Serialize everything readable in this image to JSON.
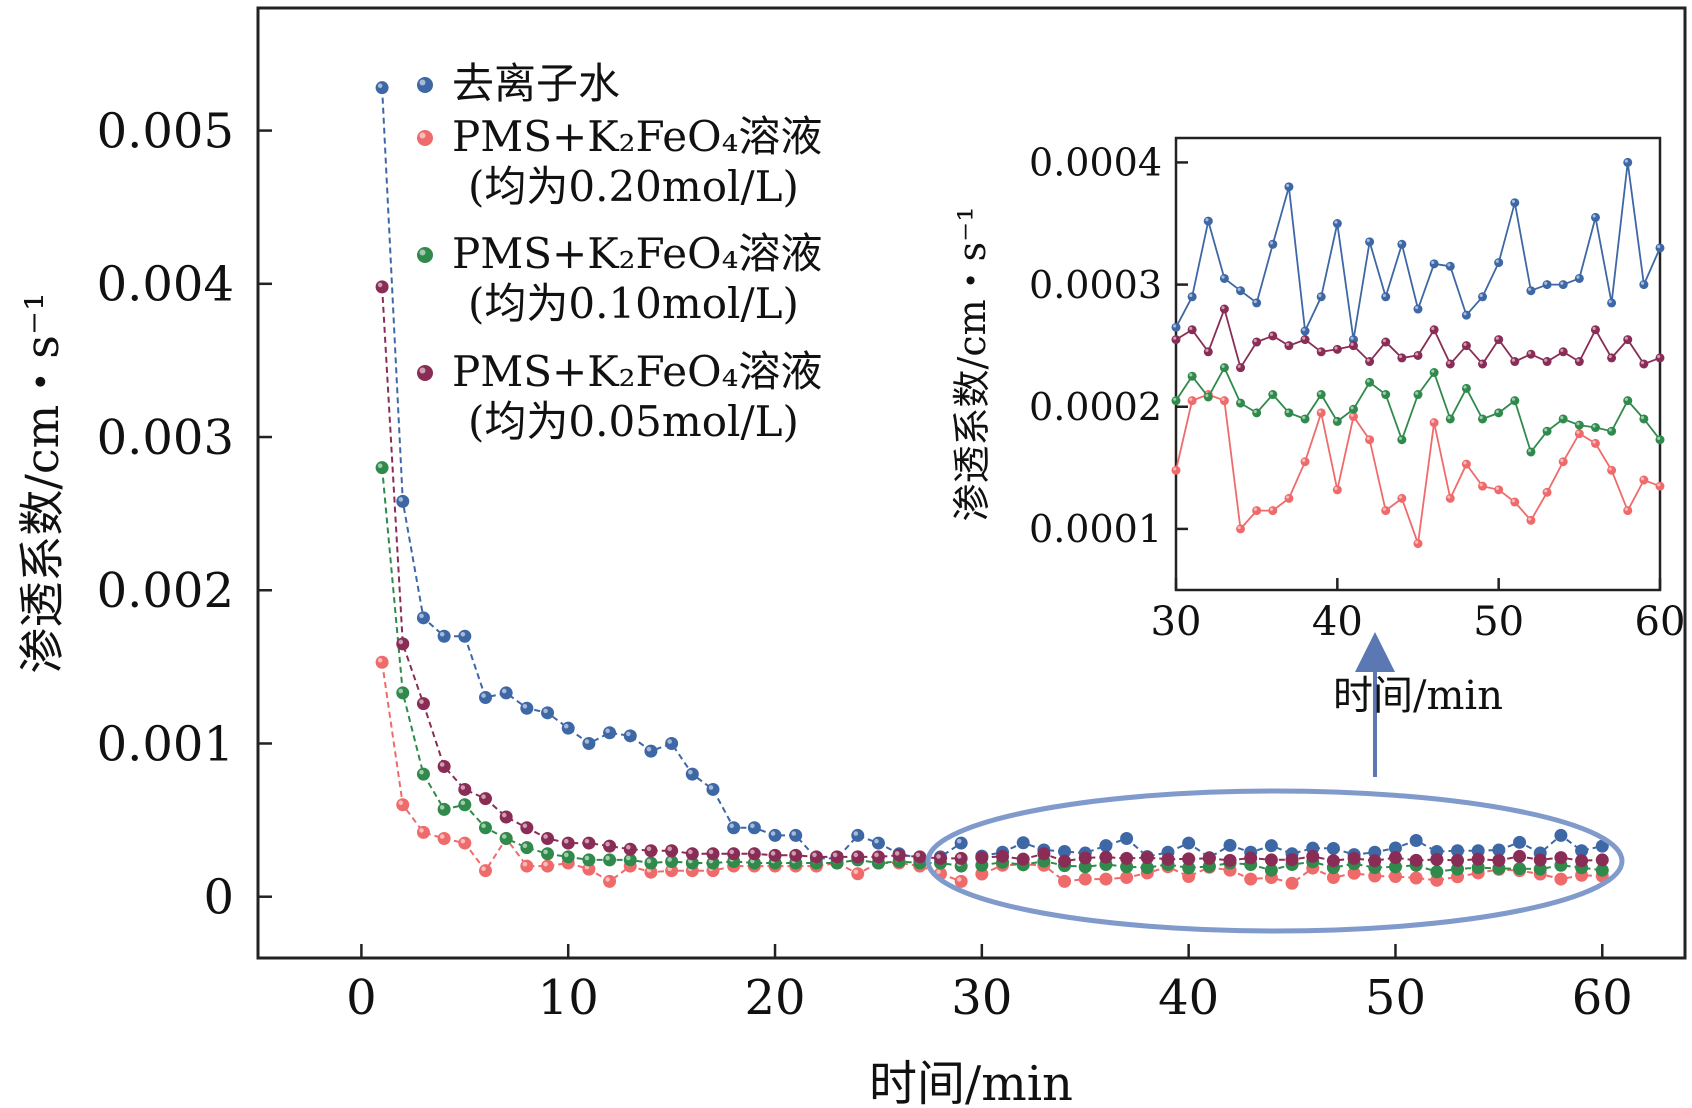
{
  "colors": {
    "blue": "#3e67a6",
    "red": "#ef6b6b",
    "green": "#2f8a4c",
    "purple": "#8a2d56",
    "ellipse": "#7f9acb",
    "arrow": "#5b78b3"
  },
  "chart_data": [
    {
      "id": "main",
      "type": "scatter-line",
      "xlabel": "时间/min",
      "ylabel": "渗透系数/cm・s⁻¹",
      "xlim": [
        -5,
        64
      ],
      "ylim": [
        -0.0004,
        0.0058
      ],
      "xticks": [
        0,
        10,
        20,
        30,
        40,
        50,
        60
      ],
      "yticks": [
        0,
        0.001,
        0.002,
        0.003,
        0.004,
        0.005
      ],
      "ytick_labels": [
        "0",
        "0.001",
        "0.002",
        "0.003",
        "0.004",
        "0.005"
      ],
      "legend": [
        {
          "series": 0,
          "text": [
            "去离子水"
          ]
        },
        {
          "series": 1,
          "text": [
            "PMS+K₂FeO₄溶液",
            "(均为0.20mol/L)"
          ]
        },
        {
          "series": 2,
          "text": [
            "PMS+K₂FeO₄溶液",
            "(均为0.10mol/L)"
          ]
        },
        {
          "series": 3,
          "text": [
            "PMS+K₂FeO₄溶液",
            "(均为0.05mol/L)"
          ]
        }
      ],
      "annotation": "ellipse highlighting 30–60 min region with arrow pointing to inset",
      "series": [
        {
          "name": "去离子水",
          "color": "blue",
          "x": [
            1,
            2,
            3,
            4,
            5,
            6,
            7,
            8,
            9,
            10,
            11,
            12,
            13,
            14,
            15,
            16,
            17,
            18,
            19,
            20,
            21,
            22,
            23,
            24,
            25,
            26,
            27,
            28,
            29
          ],
          "y": [
            0.00528,
            0.00258,
            0.00182,
            0.0017,
            0.0017,
            0.0013,
            0.00133,
            0.00123,
            0.0012,
            0.0011,
            0.001,
            0.00107,
            0.00105,
            0.00095,
            0.001,
            0.0008,
            0.0007,
            0.00045,
            0.00045,
            0.0004,
            0.0004,
            0.00025,
            0.00025,
            0.0004,
            0.00035,
            0.00028,
            0.00025,
            0.00026,
            0.00035
          ]
        },
        {
          "name": "PMS+K₂FeO₄溶液 (均为0.20mol/L)",
          "color": "red",
          "x": [
            1,
            2,
            3,
            4,
            5,
            6,
            7,
            8,
            9,
            10,
            11,
            12,
            13,
            14,
            15,
            16,
            17,
            18,
            19,
            20,
            21,
            22,
            23,
            24,
            25,
            26,
            27,
            28,
            29
          ],
          "y": [
            0.00153,
            0.0006,
            0.00042,
            0.00038,
            0.00035,
            0.00017,
            0.00038,
            0.0002,
            0.0002,
            0.00022,
            0.00018,
            0.0001,
            0.0002,
            0.00016,
            0.00017,
            0.00017,
            0.00017,
            0.0002,
            0.0002,
            0.0002,
            0.0002,
            0.0002,
            0.00022,
            0.00015,
            0.00022,
            0.00022,
            0.0002,
            0.00015,
            0.0001
          ]
        },
        {
          "name": "PMS+K₂FeO₄溶液 (均为0.10mol/L)",
          "color": "green",
          "x": [
            1,
            2,
            3,
            4,
            5,
            6,
            7,
            8,
            9,
            10,
            11,
            12,
            13,
            14,
            15,
            16,
            17,
            18,
            19,
            20,
            21,
            22,
            23,
            24,
            25,
            26,
            27,
            28,
            29
          ],
          "y": [
            0.0028,
            0.00133,
            0.0008,
            0.00057,
            0.0006,
            0.00045,
            0.00038,
            0.00032,
            0.00028,
            0.00026,
            0.00024,
            0.00024,
            0.00024,
            0.00022,
            0.00023,
            0.00022,
            0.00022,
            0.00023,
            0.00022,
            0.00022,
            0.00022,
            0.00022,
            0.00022,
            0.00024,
            0.00022,
            0.00023,
            0.00022,
            0.00022,
            0.0002
          ]
        },
        {
          "name": "PMS+K₂FeO₄溶液 (均为0.05mol/L)",
          "color": "purple",
          "x": [
            1,
            2,
            3,
            4,
            5,
            6,
            7,
            8,
            9,
            10,
            11,
            12,
            13,
            14,
            15,
            16,
            17,
            18,
            19,
            20,
            21,
            22,
            23,
            24,
            25,
            26,
            27,
            28,
            29
          ],
          "y": [
            0.00398,
            0.00165,
            0.00126,
            0.00085,
            0.0007,
            0.00064,
            0.00052,
            0.00045,
            0.00038,
            0.00035,
            0.00035,
            0.00033,
            0.00031,
            0.0003,
            0.0003,
            0.00028,
            0.00028,
            0.00028,
            0.00028,
            0.00027,
            0.00027,
            0.00026,
            0.00026,
            0.00026,
            0.00026,
            0.00027,
            0.00026,
            0.00025,
            0.00025
          ]
        }
      ]
    },
    {
      "id": "inset",
      "type": "scatter-line",
      "xlabel": "时间/min",
      "ylabel": "渗透系数/cm・s⁻¹",
      "xlim": [
        30,
        60
      ],
      "ylim": [
        5e-05,
        0.00042
      ],
      "xticks": [
        30,
        40,
        50,
        60
      ],
      "yticks": [
        0.0001,
        0.0002,
        0.0003,
        0.0004
      ],
      "ytick_labels": [
        "0.0001",
        "0.0002",
        "0.0003",
        "0.0004"
      ],
      "series": [
        {
          "name": "去离子水",
          "color": "blue",
          "x": [
            30,
            31,
            32,
            33,
            34,
            35,
            36,
            37,
            38,
            39,
            40,
            41,
            42,
            43,
            44,
            45,
            46,
            47,
            48,
            49,
            50,
            51,
            52,
            53,
            54,
            55,
            56,
            57,
            58,
            59,
            60
          ],
          "y": [
            0.000265,
            0.00029,
            0.000352,
            0.000305,
            0.000295,
            0.000285,
            0.000333,
            0.00038,
            0.000262,
            0.00029,
            0.00035,
            0.000255,
            0.000335,
            0.00029,
            0.000333,
            0.00028,
            0.000317,
            0.000315,
            0.000275,
            0.00029,
            0.000318,
            0.000367,
            0.000295,
            0.0003,
            0.0003,
            0.000305,
            0.000355,
            0.000285,
            0.0004,
            0.0003,
            0.00033
          ]
        },
        {
          "name": "PMS+K₂FeO₄溶液 (均为0.20mol/L)",
          "color": "red",
          "x": [
            30,
            31,
            32,
            33,
            34,
            35,
            36,
            37,
            38,
            39,
            40,
            41,
            42,
            43,
            44,
            45,
            46,
            47,
            48,
            49,
            50,
            51,
            52,
            53,
            54,
            55,
            56,
            57,
            58,
            59,
            60
          ],
          "y": [
            0.000148,
            0.000205,
            0.00021,
            0.000205,
            0.0001,
            0.000115,
            0.000115,
            0.000125,
            0.000155,
            0.000195,
            0.000132,
            0.000192,
            0.000173,
            0.000115,
            0.000125,
            8.8e-05,
            0.000187,
            0.000125,
            0.000153,
            0.000135,
            0.000132,
            0.000122,
            0.000107,
            0.00013,
            0.000155,
            0.000178,
            0.00017,
            0.000148,
            0.000115,
            0.00014,
            0.000135
          ]
        },
        {
          "name": "PMS+K₂FeO₄溶液 (均为0.10mol/L)",
          "color": "green",
          "x": [
            30,
            31,
            32,
            33,
            34,
            35,
            36,
            37,
            38,
            39,
            40,
            41,
            42,
            43,
            44,
            45,
            46,
            47,
            48,
            49,
            50,
            51,
            52,
            53,
            54,
            55,
            56,
            57,
            58,
            59,
            60
          ],
          "y": [
            0.000205,
            0.000225,
            0.000208,
            0.000232,
            0.000203,
            0.000195,
            0.00021,
            0.000195,
            0.00019,
            0.00021,
            0.000188,
            0.000198,
            0.00022,
            0.00021,
            0.000173,
            0.00021,
            0.000228,
            0.00019,
            0.000215,
            0.00019,
            0.000195,
            0.000205,
            0.000163,
            0.00018,
            0.00019,
            0.000185,
            0.000183,
            0.00018,
            0.000205,
            0.00019,
            0.000173
          ]
        },
        {
          "name": "PMS+K₂FeO₄溶液 (均为0.05mol/L)",
          "color": "purple",
          "x": [
            30,
            31,
            32,
            33,
            34,
            35,
            36,
            37,
            38,
            39,
            40,
            41,
            42,
            43,
            44,
            45,
            46,
            47,
            48,
            49,
            50,
            51,
            52,
            53,
            54,
            55,
            56,
            57,
            58,
            59,
            60
          ],
          "y": [
            0.000255,
            0.000263,
            0.000245,
            0.00028,
            0.000232,
            0.000253,
            0.000258,
            0.00025,
            0.000255,
            0.000245,
            0.000247,
            0.00025,
            0.000237,
            0.000253,
            0.00024,
            0.000242,
            0.000263,
            0.000235,
            0.00025,
            0.000235,
            0.000255,
            0.000237,
            0.000243,
            0.000237,
            0.000245,
            0.000237,
            0.000263,
            0.00024,
            0.000255,
            0.000235,
            0.00024
          ]
        }
      ]
    }
  ]
}
